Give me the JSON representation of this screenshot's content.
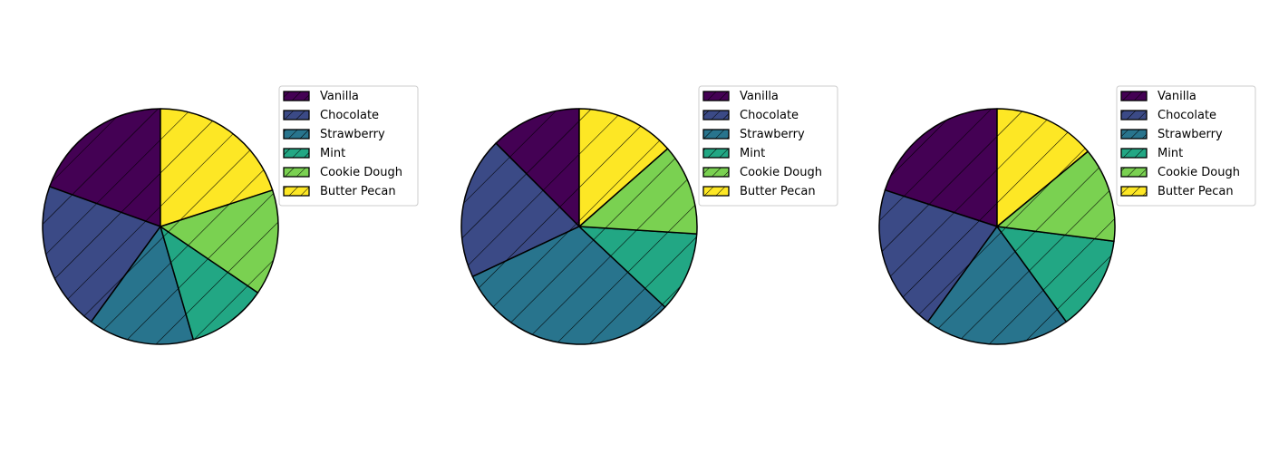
{
  "chart_data": [
    {
      "type": "pie",
      "start_angle": 90,
      "direction": "counterclockwise",
      "categories": [
        "Vanilla",
        "Chocolate",
        "Strawberry",
        "Mint",
        "Cookie Dough",
        "Butter Pecan"
      ],
      "values": [
        19.5,
        20.5,
        14.5,
        11.0,
        14.5,
        20.0
      ],
      "colors": [
        "#440154",
        "#3b4a86",
        "#28748d",
        "#22a784",
        "#7ad151",
        "#fde725"
      ],
      "hatch": "diagonal",
      "legend_position": "right-top"
    },
    {
      "type": "pie",
      "start_angle": 90,
      "direction": "counterclockwise",
      "categories": [
        "Vanilla",
        "Chocolate",
        "Strawberry",
        "Mint",
        "Cookie Dough",
        "Butter Pecan"
      ],
      "values": [
        12.5,
        19.5,
        31.0,
        11.0,
        12.5,
        13.5
      ],
      "colors": [
        "#440154",
        "#3b4a86",
        "#28748d",
        "#22a784",
        "#7ad151",
        "#fde725"
      ],
      "hatch": "diagonal",
      "legend_position": "right-top"
    },
    {
      "type": "pie",
      "start_angle": 90,
      "direction": "counterclockwise",
      "categories": [
        "Vanilla",
        "Chocolate",
        "Strawberry",
        "Mint",
        "Cookie Dough",
        "Butter Pecan"
      ],
      "values": [
        20.0,
        20.0,
        20.0,
        13.0,
        13.0,
        14.0
      ],
      "colors": [
        "#440154",
        "#3b4a86",
        "#28748d",
        "#22a784",
        "#7ad151",
        "#fde725"
      ],
      "hatch": "diagonal",
      "legend_position": "right-top"
    }
  ]
}
